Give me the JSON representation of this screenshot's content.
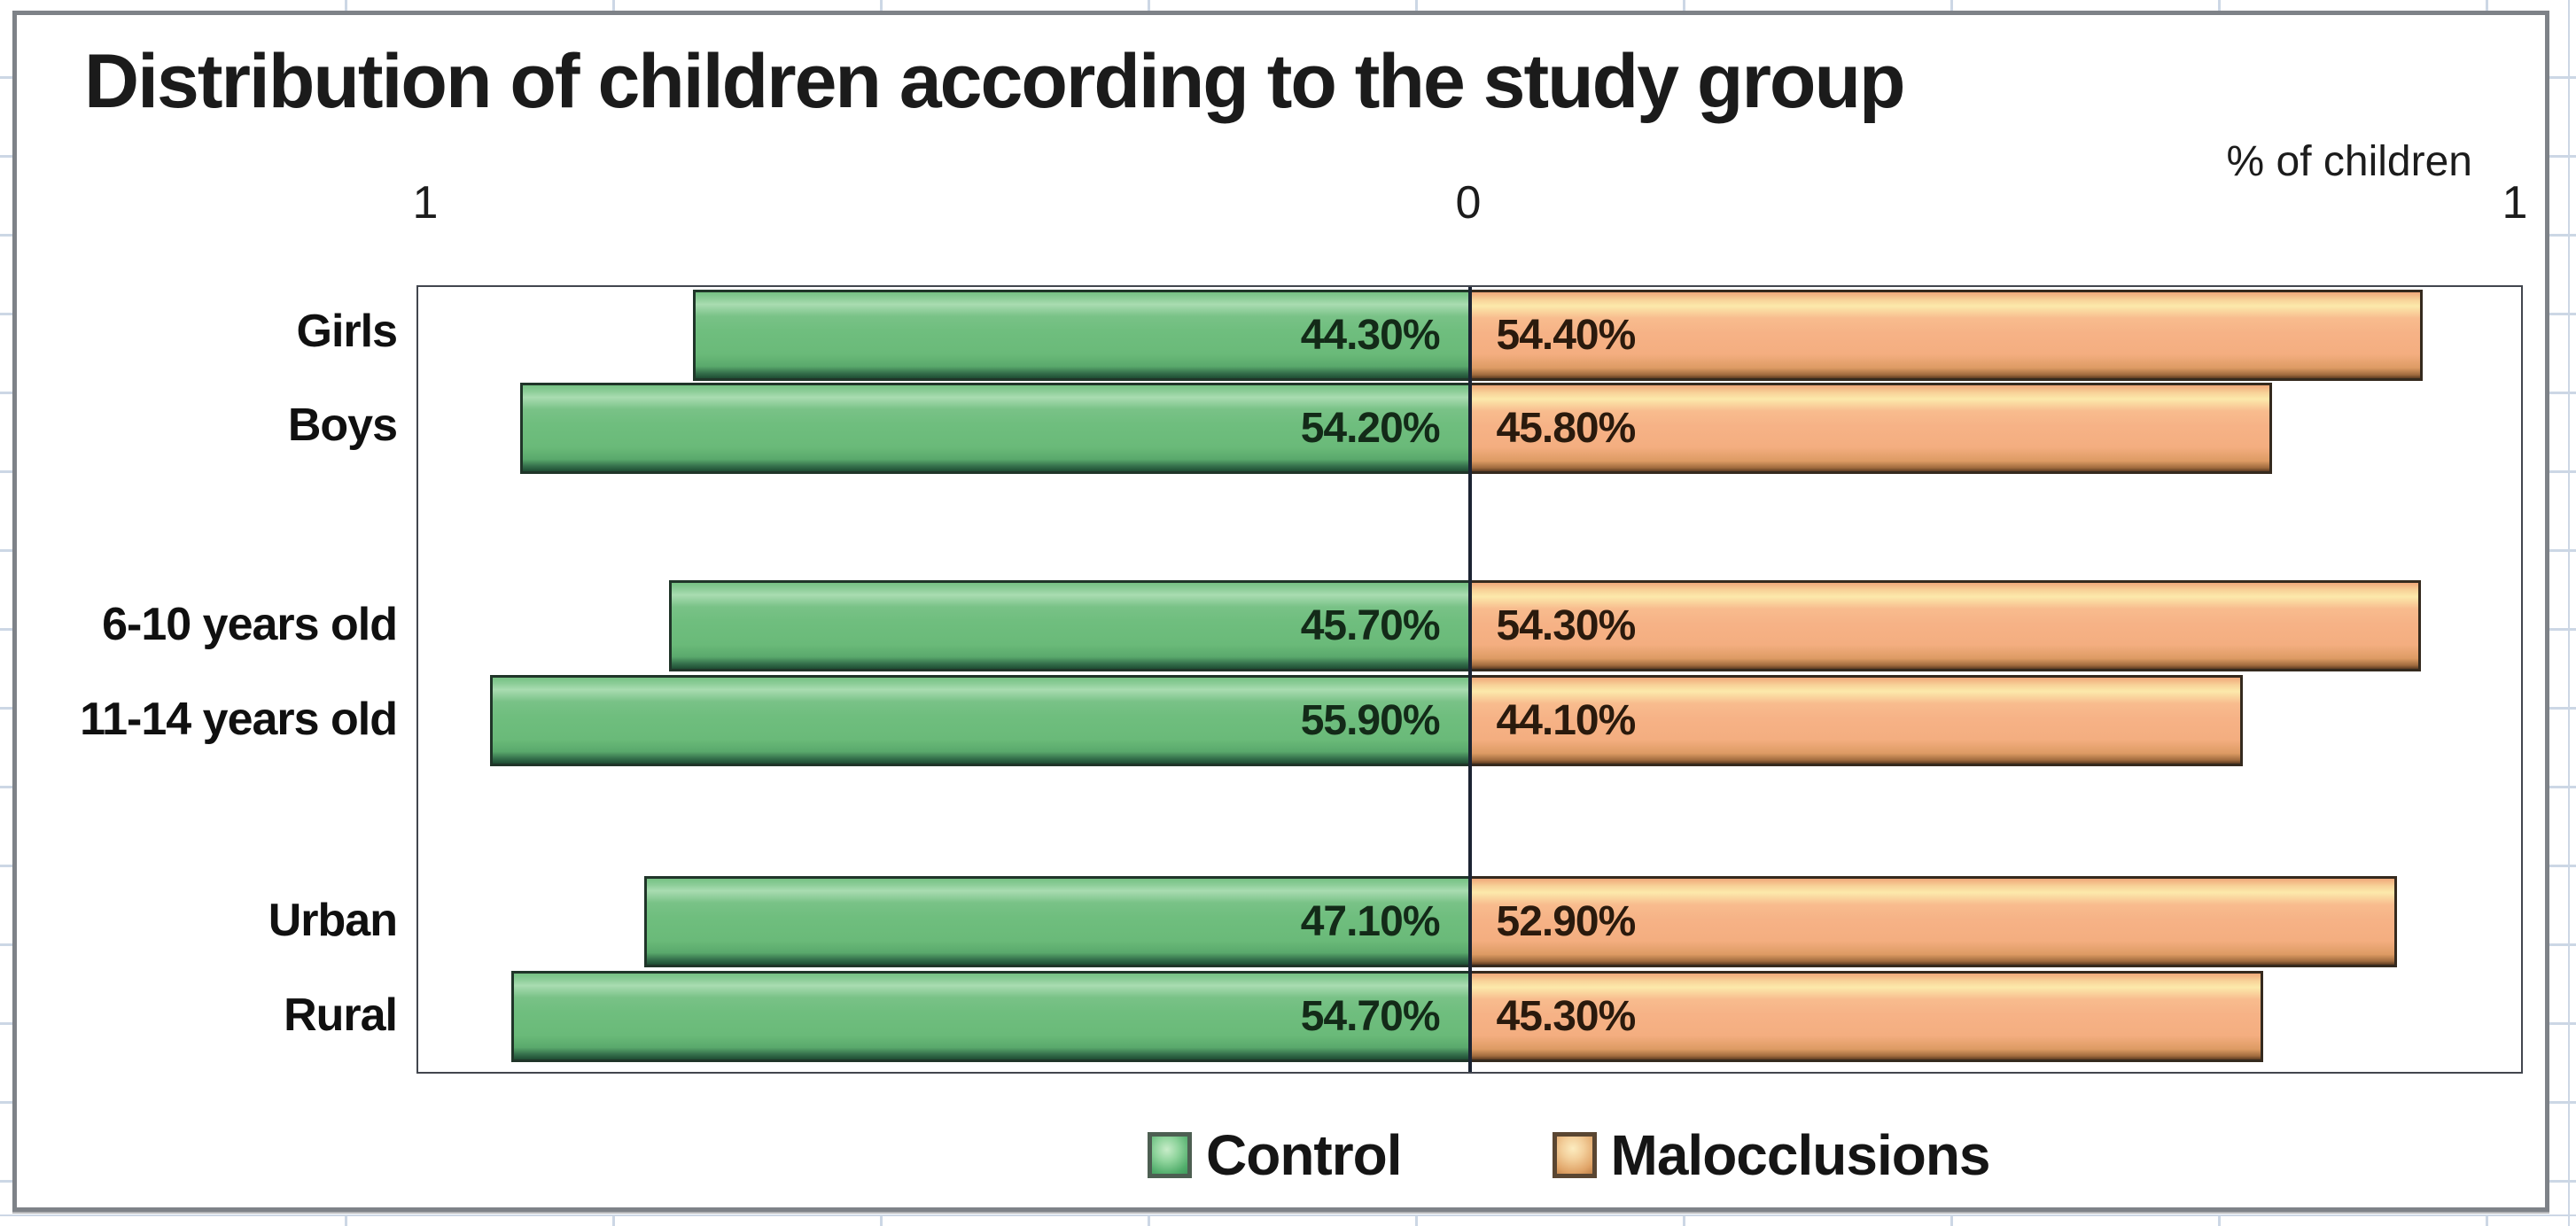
{
  "chart": {
    "title": "Distribution of children according to the study group",
    "axis_unit_label": "% of children",
    "axis_ticks": {
      "left": "1",
      "center": "0",
      "right": "1"
    },
    "colors": {
      "control_fill": "#6fbe7e",
      "malocclusions_fill": "#f6b286",
      "plot_border": "#42464e",
      "center_axis_line": "#1c2433",
      "frame_border": "#7e8288",
      "sheet_gridline": "#ccd7e5"
    }
  },
  "chart_data": {
    "type": "bar",
    "orientation": "horizontal-diverging",
    "title": "Distribution of children according to the study group",
    "xlabel": "% of children",
    "ylabel": "",
    "categories": [
      "Girls",
      "Boys",
      "6-10 years old",
      "11-14 years old",
      "Urban",
      "Rural"
    ],
    "series": [
      {
        "name": "Control",
        "side": "left",
        "color": "#6fbe7e",
        "values": [
          44.3,
          54.2,
          45.7,
          55.9,
          47.1,
          54.7
        ],
        "labels": [
          "44.30%",
          "54.20%",
          "45.70%",
          "55.90%",
          "47.10%",
          "54.70%"
        ]
      },
      {
        "name": "Malocclusions",
        "side": "right",
        "color": "#f6b286",
        "values": [
          54.4,
          45.8,
          54.3,
          44.1,
          52.9,
          45.3
        ],
        "labels": [
          "54.40%",
          "45.80%",
          "54.30%",
          "44.10%",
          "52.90%",
          "45.30%"
        ]
      }
    ],
    "groups": [
      [
        "Girls",
        "Boys"
      ],
      [
        "6-10 years old",
        "11-14 years old"
      ],
      [
        "Urban",
        "Rural"
      ]
    ],
    "axis": {
      "tick_labels": [
        "1",
        "0",
        "1"
      ],
      "center_value": 0,
      "effective_half_range_percent": 60
    },
    "grid": false,
    "legend_position": "bottom",
    "legend": [
      "Control",
      "Malocclusions"
    ]
  }
}
